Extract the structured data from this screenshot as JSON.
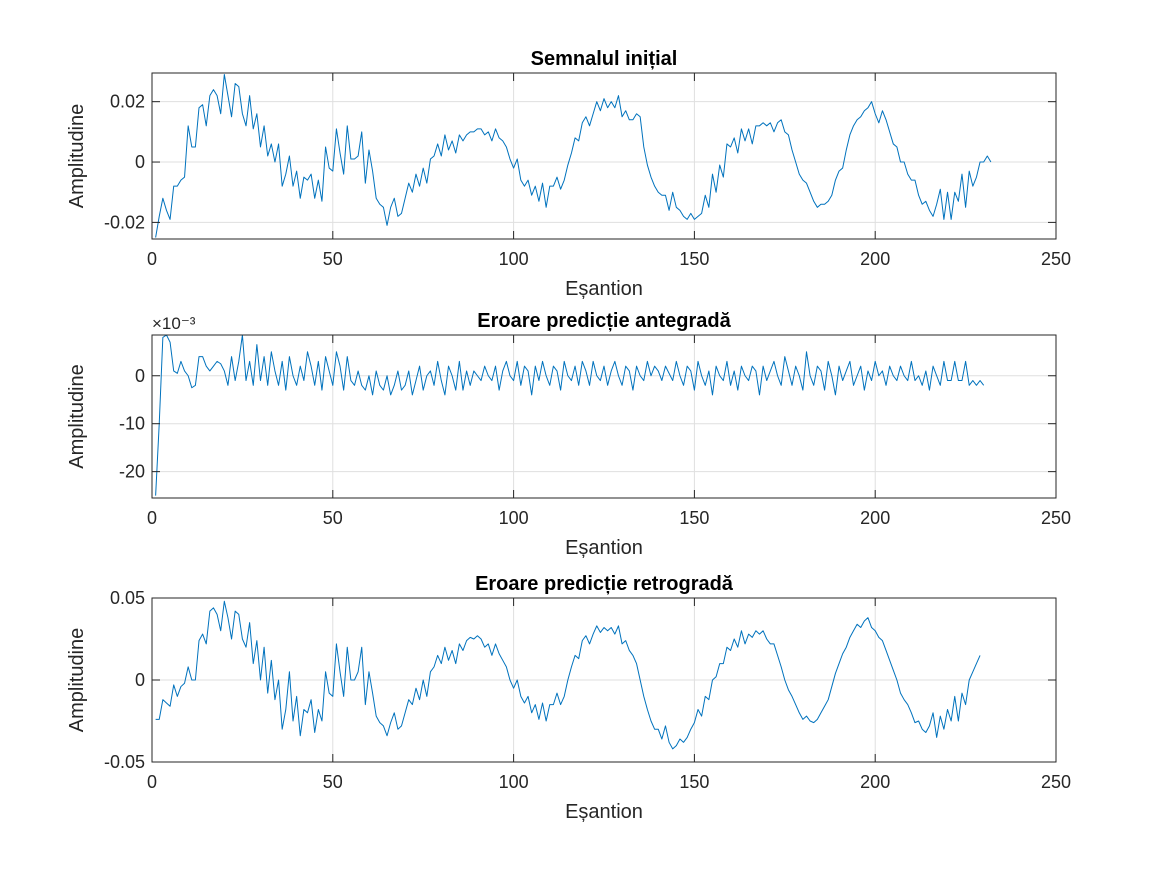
{
  "colors": {
    "series": "#0072bd"
  },
  "chart_data": [
    {
      "type": "line",
      "title": "Semnalul inițial",
      "xlabel": "Eșantion",
      "ylabel": "Amplitudine",
      "xlim": [
        0,
        250
      ],
      "ylim": [
        -0.0255,
        0.0295
      ],
      "xticks": [
        0,
        50,
        100,
        150,
        200,
        250
      ],
      "xtick_labels": [
        "0",
        "50",
        "100",
        "150",
        "200",
        "250"
      ],
      "yticks": [
        -0.02,
        0,
        0.02
      ],
      "ytick_labels": [
        "-0.02",
        "0",
        "0.02"
      ],
      "exponent_label": "",
      "grid": true,
      "series": [
        {
          "x_start": 1,
          "x_step": 1,
          "values": [
            -0.025,
            -0.018,
            -0.012,
            -0.016,
            -0.019,
            -0.008,
            -0.008,
            -0.006,
            -0.005,
            0.012,
            0.005,
            0.005,
            0.018,
            0.019,
            0.012,
            0.022,
            0.024,
            0.022,
            0.016,
            0.029,
            0.022,
            0.015,
            0.026,
            0.025,
            0.016,
            0.012,
            0.022,
            0.011,
            0.016,
            0.005,
            0.012,
            0.002,
            0.006,
            0.0,
            0.006,
            -0.008,
            -0.004,
            0.002,
            -0.008,
            -0.003,
            -0.012,
            -0.005,
            -0.006,
            -0.004,
            -0.012,
            -0.006,
            -0.013,
            0.005,
            -0.002,
            -0.003,
            0.011,
            0.003,
            -0.004,
            0.012,
            0.001,
            0.001,
            0.002,
            0.01,
            -0.007,
            0.004,
            -0.003,
            -0.012,
            -0.014,
            -0.015,
            -0.021,
            -0.015,
            -0.012,
            -0.018,
            -0.017,
            -0.012,
            -0.007,
            -0.01,
            -0.004,
            -0.008,
            -0.002,
            -0.007,
            0.001,
            0.002,
            0.006,
            0.002,
            0.009,
            0.004,
            0.007,
            0.003,
            0.009,
            0.007,
            0.009,
            0.01,
            0.01,
            0.011,
            0.011,
            0.009,
            0.01,
            0.007,
            0.011,
            0.008,
            0.007,
            0.005,
            0.001,
            -0.002,
            0.001,
            -0.006,
            -0.008,
            -0.006,
            -0.011,
            -0.008,
            -0.013,
            -0.007,
            -0.015,
            -0.008,
            -0.008,
            -0.005,
            -0.009,
            -0.006,
            -0.001,
            0.003,
            0.008,
            0.007,
            0.013,
            0.015,
            0.012,
            0.016,
            0.02,
            0.017,
            0.021,
            0.018,
            0.02,
            0.018,
            0.022,
            0.015,
            0.017,
            0.014,
            0.014,
            0.016,
            0.015,
            0.005,
            -0.001,
            -0.005,
            -0.008,
            -0.01,
            -0.011,
            -0.011,
            -0.016,
            -0.01,
            -0.015,
            -0.016,
            -0.018,
            -0.019,
            -0.017,
            -0.019,
            -0.018,
            -0.017,
            -0.011,
            -0.015,
            -0.004,
            -0.01,
            -0.001,
            -0.005,
            0.006,
            0.005,
            0.008,
            0.003,
            0.011,
            0.007,
            0.011,
            0.006,
            0.012,
            0.012,
            0.013,
            0.012,
            0.013,
            0.01,
            0.013,
            0.014,
            0.01,
            0.009,
            0.004,
            0.0,
            -0.004,
            -0.006,
            -0.007,
            -0.01,
            -0.013,
            -0.015,
            -0.014,
            -0.014,
            -0.013,
            -0.011,
            -0.006,
            -0.003,
            -0.002,
            0.004,
            0.009,
            0.012,
            0.014,
            0.015,
            0.017,
            0.018,
            0.02,
            0.016,
            0.013,
            0.017,
            0.014,
            0.01,
            0.006,
            0.005,
            0.0,
            0.0,
            -0.004,
            -0.006,
            -0.006,
            -0.011,
            -0.014,
            -0.013,
            -0.016,
            -0.018,
            -0.014,
            -0.009,
            -0.019,
            -0.01,
            -0.019,
            -0.01,
            -0.013,
            -0.004,
            -0.015,
            -0.003,
            -0.008,
            -0.005,
            0.0,
            0.0,
            0.002,
            0.0
          ]
        }
      ]
    },
    {
      "type": "line",
      "title": "Eroare predicție antegradă",
      "xlabel": "Eșantion",
      "ylabel": "Amplitudine",
      "xlim": [
        0,
        250
      ],
      "ylim": [
        -25.5,
        8.5
      ],
      "xticks": [
        0,
        50,
        100,
        150,
        200,
        250
      ],
      "xtick_labels": [
        "0",
        "50",
        "100",
        "150",
        "200",
        "250"
      ],
      "yticks": [
        -20,
        -10,
        0
      ],
      "ytick_labels": [
        "-20",
        "-10",
        "0"
      ],
      "exponent_label": "×10⁻³",
      "grid": true,
      "series": [
        {
          "x_start": 1,
          "x_step": 1,
          "values": [
            -25.0,
            -10.0,
            8.0,
            9.0,
            7.0,
            1.0,
            0.5,
            3.0,
            1.0,
            0.0,
            -2.5,
            -2.0,
            4.0,
            4.0,
            2.0,
            1.0,
            2.0,
            3.0,
            2.5,
            1.0,
            -2.0,
            4.0,
            -1.0,
            3.0,
            8.5,
            -1.0,
            3.0,
            -2.0,
            6.5,
            -1.0,
            4.0,
            -2.0,
            5.0,
            1.0,
            -2.0,
            3.0,
            -3.0,
            4.0,
            0.0,
            -2.0,
            2.0,
            -1.0,
            5.0,
            2.0,
            -2.0,
            3.0,
            -3.0,
            4.0,
            1.0,
            -2.0,
            5.0,
            2.0,
            -3.0,
            4.0,
            -1.0,
            -2.0,
            1.0,
            -2.0,
            -3.0,
            0.0,
            -4.0,
            1.0,
            -2.0,
            -3.0,
            0.0,
            -4.0,
            -2.0,
            1.0,
            -3.0,
            -2.0,
            1.0,
            -4.0,
            -1.0,
            2.0,
            -3.0,
            0.0,
            1.0,
            -2.0,
            3.0,
            -1.0,
            -4.0,
            2.0,
            0.0,
            -3.0,
            3.0,
            -3.0,
            1.0,
            -2.0,
            1.0,
            0.0,
            -1.0,
            2.0,
            0.0,
            -1.0,
            2.0,
            -3.0,
            1.0,
            3.0,
            0.0,
            -1.0,
            3.0,
            -2.0,
            2.0,
            1.0,
            -4.0,
            2.0,
            -1.0,
            3.0,
            0.0,
            -2.0,
            2.0,
            1.0,
            -3.0,
            3.0,
            0.0,
            -1.0,
            2.0,
            -2.0,
            3.0,
            1.0,
            -2.0,
            3.0,
            0.0,
            -1.0,
            2.0,
            -2.0,
            1.0,
            3.0,
            0.0,
            -2.0,
            2.0,
            1.0,
            -3.0,
            2.0,
            0.0,
            -1.0,
            3.0,
            0.0,
            2.0,
            1.0,
            -1.0,
            2.0,
            0.5,
            -1.0,
            3.0,
            0.0,
            -2.0,
            2.0,
            1.0,
            -3.0,
            3.0,
            0.0,
            -2.0,
            1.0,
            -4.0,
            2.0,
            0.0,
            -1.0,
            3.0,
            -2.0,
            1.0,
            -3.0,
            2.0,
            0.0,
            -1.0,
            2.0,
            1.0,
            -4.0,
            2.0,
            -1.0,
            1.0,
            3.0,
            0.0,
            -2.0,
            4.0,
            1.0,
            -2.0,
            2.0,
            0.0,
            -3.0,
            5.0,
            0.0,
            -2.0,
            2.0,
            1.0,
            -3.0,
            3.0,
            0.0,
            -4.0,
            2.0,
            -1.0,
            1.0,
            3.0,
            -2.0,
            0.0,
            2.0,
            -3.0,
            1.0,
            -1.0,
            3.0,
            0.0,
            1.0,
            -2.0,
            2.0,
            0.0,
            -1.0,
            2.0,
            0.0,
            -1.0,
            3.0,
            -1.0,
            0.0,
            -2.0,
            1.0,
            -3.0,
            2.0,
            0.0,
            -2.0,
            3.0,
            -1.0,
            -1.0,
            3.0,
            -1.0,
            -1.0,
            3.0,
            -2.0,
            -1.0,
            -2.0,
            -1.0,
            -2.0
          ]
        }
      ]
    },
    {
      "type": "line",
      "title": "Eroare predicție retrogradă",
      "xlabel": "Eșantion",
      "ylabel": "Amplitudine",
      "xlim": [
        0,
        250
      ],
      "ylim": [
        -0.05,
        0.05
      ],
      "xticks": [
        0,
        50,
        100,
        150,
        200,
        250
      ],
      "xtick_labels": [
        "0",
        "50",
        "100",
        "150",
        "200",
        "250"
      ],
      "yticks": [
        -0.05,
        0,
        0.05
      ],
      "ytick_labels": [
        "-0.05",
        "0",
        "0.05"
      ],
      "exponent_label": "",
      "grid": true,
      "series": [
        {
          "x_start": 1,
          "x_step": 1,
          "values": [
            -0.024,
            -0.024,
            -0.012,
            -0.014,
            -0.016,
            -0.003,
            -0.01,
            -0.004,
            -0.002,
            0.008,
            0.0,
            0.0,
            0.024,
            0.028,
            0.022,
            0.042,
            0.044,
            0.04,
            0.03,
            0.048,
            0.038,
            0.025,
            0.042,
            0.04,
            0.025,
            0.02,
            0.035,
            0.01,
            0.024,
            0.0,
            0.02,
            -0.008,
            0.012,
            -0.012,
            0.0,
            -0.03,
            -0.018,
            0.005,
            -0.025,
            -0.01,
            -0.034,
            -0.018,
            -0.02,
            -0.012,
            -0.032,
            -0.018,
            -0.025,
            0.005,
            -0.008,
            -0.01,
            0.022,
            0.005,
            -0.01,
            0.02,
            0.0,
            0.0,
            0.005,
            0.02,
            -0.015,
            0.005,
            -0.008,
            -0.022,
            -0.026,
            -0.028,
            -0.034,
            -0.026,
            -0.02,
            -0.03,
            -0.028,
            -0.02,
            -0.012,
            -0.015,
            -0.005,
            -0.012,
            0.0,
            -0.01,
            0.005,
            0.008,
            0.015,
            0.01,
            0.02,
            0.012,
            0.018,
            0.01,
            0.022,
            0.018,
            0.024,
            0.026,
            0.025,
            0.027,
            0.025,
            0.02,
            0.022,
            0.015,
            0.022,
            0.016,
            0.012,
            0.008,
            0.0,
            -0.005,
            0.0,
            -0.01,
            -0.014,
            -0.01,
            -0.02,
            -0.015,
            -0.024,
            -0.014,
            -0.025,
            -0.015,
            -0.015,
            -0.008,
            -0.015,
            -0.01,
            0.0,
            0.008,
            0.015,
            0.013,
            0.024,
            0.027,
            0.022,
            0.028,
            0.033,
            0.029,
            0.032,
            0.03,
            0.032,
            0.028,
            0.033,
            0.022,
            0.024,
            0.018,
            0.015,
            0.01,
            0.0,
            -0.01,
            -0.018,
            -0.025,
            -0.03,
            -0.03,
            -0.036,
            -0.028,
            -0.038,
            -0.042,
            -0.04,
            -0.036,
            -0.038,
            -0.035,
            -0.03,
            -0.026,
            -0.018,
            -0.022,
            -0.01,
            -0.012,
            0.0,
            0.002,
            0.01,
            0.01,
            0.02,
            0.018,
            0.025,
            0.02,
            0.03,
            0.022,
            0.028,
            0.026,
            0.03,
            0.028,
            0.03,
            0.025,
            0.022,
            0.022,
            0.015,
            0.008,
            0.0,
            -0.006,
            -0.01,
            -0.015,
            -0.02,
            -0.024,
            -0.022,
            -0.025,
            -0.026,
            -0.024,
            -0.02,
            -0.016,
            -0.012,
            -0.004,
            0.004,
            0.01,
            0.016,
            0.02,
            0.026,
            0.03,
            0.034,
            0.032,
            0.036,
            0.038,
            0.032,
            0.03,
            0.026,
            0.024,
            0.018,
            0.012,
            0.006,
            0.0,
            -0.008,
            -0.012,
            -0.015,
            -0.02,
            -0.026,
            -0.025,
            -0.03,
            -0.032,
            -0.028,
            -0.02,
            -0.035,
            -0.022,
            -0.03,
            -0.018,
            -0.025,
            -0.01,
            -0.025,
            -0.008,
            -0.015,
            0.0,
            0.005,
            0.01,
            0.015
          ]
        }
      ]
    }
  ]
}
